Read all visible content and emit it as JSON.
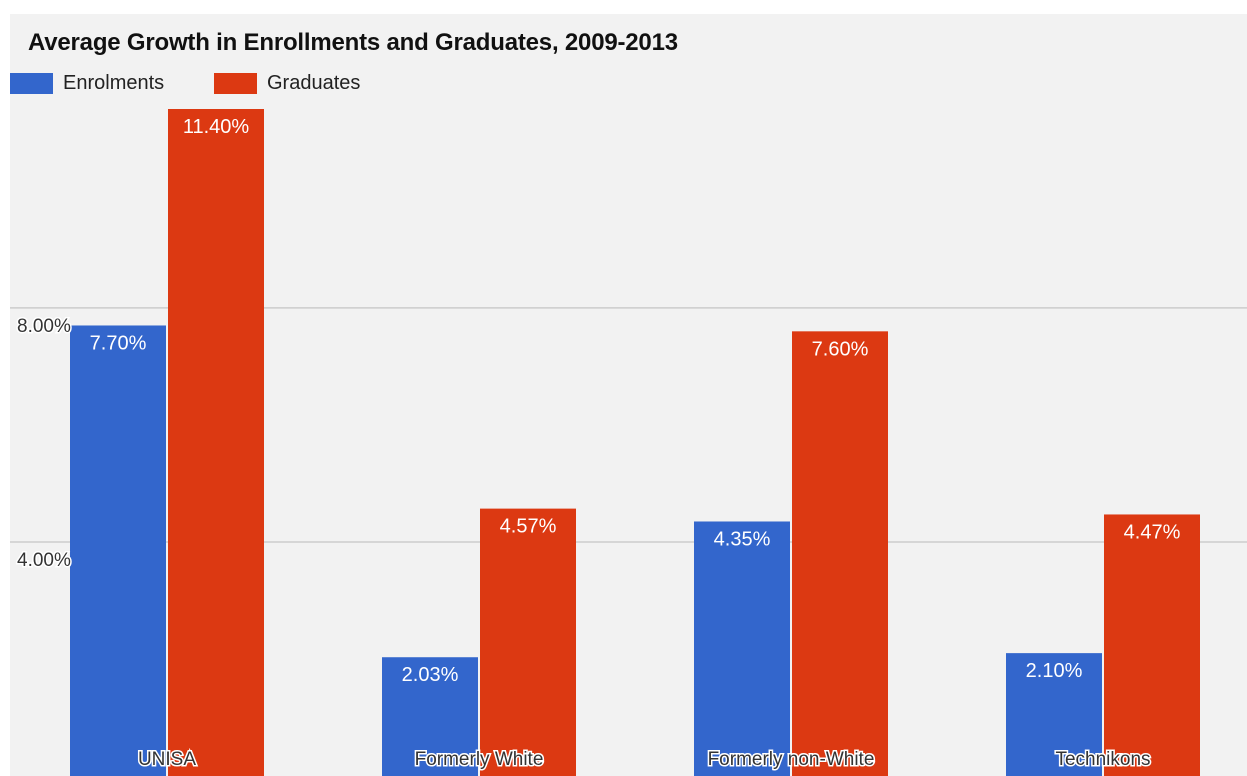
{
  "chart_data": {
    "type": "bar",
    "title": "Average Growth in Enrollments and Graduates, 2009-2013",
    "xlabel": "",
    "ylabel": "",
    "categories": [
      "UNISA",
      "Formerly White",
      "Formerly non-White",
      "Technikons"
    ],
    "series": [
      {
        "name": "Enrolments",
        "color": "#3366cc",
        "values": [
          7.7,
          2.03,
          4.35,
          2.1
        ],
        "labels": [
          "7.70%",
          "2.03%",
          "4.35%",
          "2.10%"
        ]
      },
      {
        "name": "Graduates",
        "color": "#dc3912",
        "values": [
          11.4,
          4.57,
          7.6,
          4.47
        ],
        "labels": [
          "11.40%",
          "4.57%",
          "7.60%",
          "4.47%"
        ]
      }
    ],
    "yticks": [
      4,
      8
    ],
    "ytick_labels": [
      "4.00%",
      "8.00%"
    ],
    "ylim": [
      0,
      11.4
    ],
    "grid": true,
    "legend_position": "top-left"
  }
}
